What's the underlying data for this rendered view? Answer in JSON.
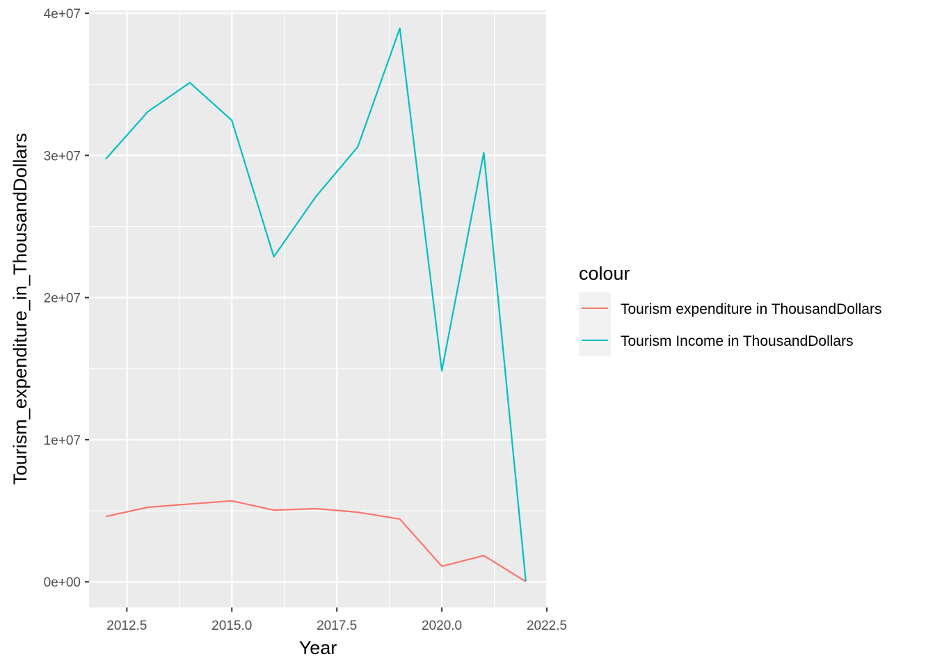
{
  "chart_data": {
    "type": "line",
    "title": "",
    "xlabel": "Year",
    "ylabel": "Tourism_expenditure_in_ThousandDollars",
    "xlim": [
      2011.6,
      2022.5
    ],
    "ylim": [
      -1800000,
      40200000
    ],
    "x_ticks": [
      2012.5,
      2015.0,
      2017.5,
      2020.0,
      2022.5
    ],
    "x_tick_labels": [
      "2012.5",
      "2015.0",
      "2017.5",
      "2020.0",
      "2022.5"
    ],
    "y_ticks": [
      0,
      10000000,
      20000000,
      30000000,
      40000000
    ],
    "y_tick_labels": [
      "0e+00",
      "1e+07",
      "2e+07",
      "3e+07",
      "4e+07"
    ],
    "grid": true,
    "legend": {
      "title": "colour",
      "position": "right"
    },
    "x": [
      2012,
      2013,
      2014,
      2015,
      2016,
      2017,
      2018,
      2019,
      2020,
      2021,
      2022
    ],
    "series": [
      {
        "name": "Tourism expenditure in ThousandDollars",
        "color": "#F8766D",
        "values": [
          4600000,
          5250000,
          5480000,
          5700000,
          5050000,
          5150000,
          4900000,
          4420000,
          1100000,
          1850000,
          20000
        ]
      },
      {
        "name": "Tourism Income in ThousandDollars",
        "color": "#00BFC4",
        "values": [
          29750000,
          33080000,
          35120000,
          32470000,
          22870000,
          27100000,
          30600000,
          38940000,
          14850000,
          30200000,
          50000
        ]
      }
    ]
  }
}
